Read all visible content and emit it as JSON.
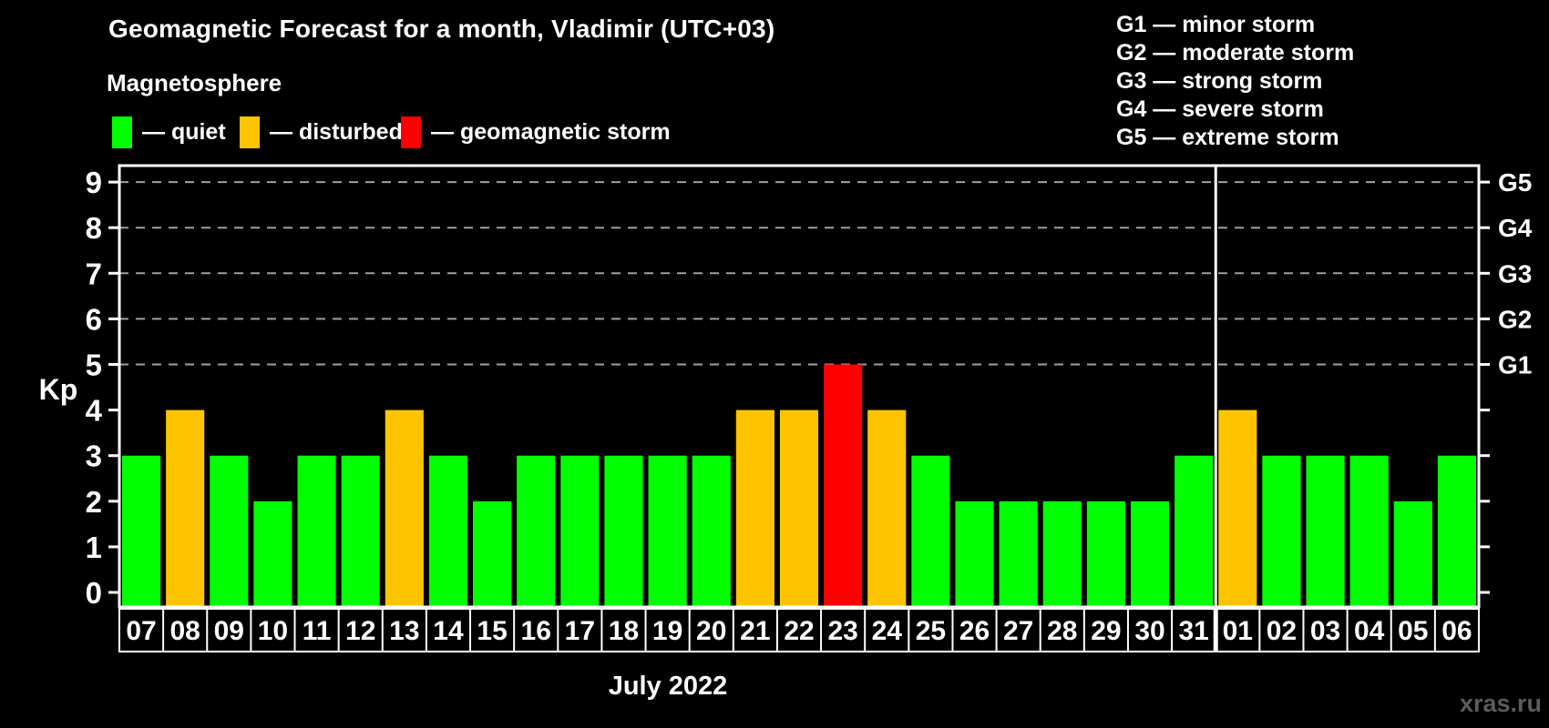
{
  "page": {
    "background": "#000000",
    "watermark": "xras.ru"
  },
  "header": {
    "title": "Geomagnetic Forecast for a month, Vladimir (UTC+03)",
    "subtitle": "Magnetosphere"
  },
  "status_legend": {
    "items": [
      {
        "name": "quiet",
        "label": "— quiet",
        "color": "#00ff00"
      },
      {
        "name": "disturbed",
        "label": "— disturbed",
        "color": "#ffc400"
      },
      {
        "name": "storm",
        "label": "— geomagnetic storm",
        "color": "#ff0000"
      }
    ]
  },
  "g_legend": {
    "items": [
      "G1 — minor storm",
      "G2 — moderate storm",
      "G3 — strong storm",
      "G4 — severe storm",
      "G5 — extreme storm"
    ]
  },
  "chart_data": {
    "type": "bar",
    "title": "Geomagnetic Forecast for a month, Vladimir (UTC+03)",
    "ylabel": "Kp",
    "xlabel": "July 2022",
    "ylim": [
      0,
      9
    ],
    "yticks": [
      0,
      1,
      2,
      3,
      4,
      5,
      6,
      7,
      8,
      9
    ],
    "gridlines_at": [
      5,
      6,
      7,
      8,
      9
    ],
    "grid": true,
    "legend_position": "top",
    "right_axis": [
      {
        "kp": 5,
        "label": "G1"
      },
      {
        "kp": 6,
        "label": "G2"
      },
      {
        "kp": 7,
        "label": "G3"
      },
      {
        "kp": 8,
        "label": "G4"
      },
      {
        "kp": 9,
        "label": "G5"
      }
    ],
    "categories": [
      "07",
      "08",
      "09",
      "10",
      "11",
      "12",
      "13",
      "14",
      "15",
      "16",
      "17",
      "18",
      "19",
      "20",
      "21",
      "22",
      "23",
      "24",
      "25",
      "26",
      "27",
      "28",
      "29",
      "30",
      "31",
      "01",
      "02",
      "03",
      "04",
      "05",
      "06"
    ],
    "values": [
      3,
      4,
      3,
      2,
      3,
      3,
      4,
      3,
      2,
      3,
      3,
      3,
      3,
      3,
      4,
      4,
      5,
      4,
      3,
      2,
      2,
      2,
      2,
      2,
      3,
      4,
      3,
      3,
      3,
      2,
      3
    ],
    "statuses": [
      "quiet",
      "disturbed",
      "quiet",
      "quiet",
      "quiet",
      "quiet",
      "disturbed",
      "quiet",
      "quiet",
      "quiet",
      "quiet",
      "quiet",
      "quiet",
      "quiet",
      "disturbed",
      "disturbed",
      "storm",
      "disturbed",
      "quiet",
      "quiet",
      "quiet",
      "quiet",
      "quiet",
      "quiet",
      "quiet",
      "disturbed",
      "quiet",
      "quiet",
      "quiet",
      "quiet",
      "quiet"
    ],
    "colors": {
      "quiet": "#00ff00",
      "disturbed": "#ffc400",
      "storm": "#ff0000"
    },
    "gridline_color": "#a0a0a0",
    "axis_color": "#ffffff",
    "month_boundary_index": 25
  }
}
